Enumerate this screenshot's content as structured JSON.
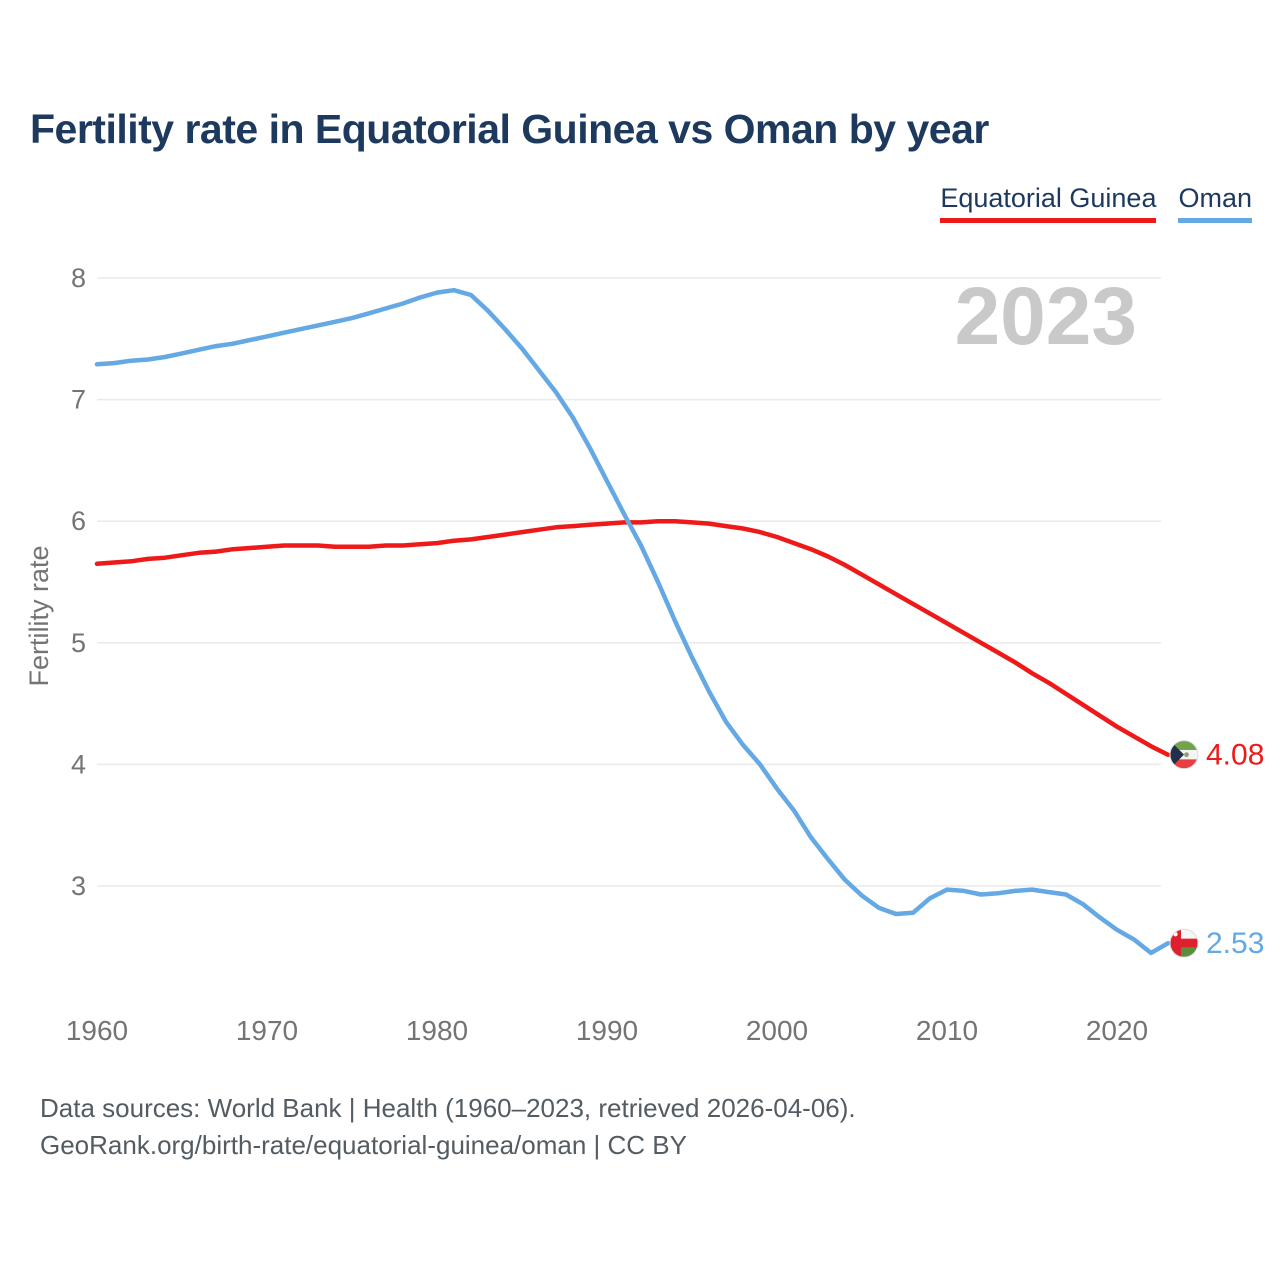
{
  "title": "Fertility rate in Equatorial Guinea vs Oman by year",
  "legend": {
    "items": [
      {
        "label": "Equatorial Guinea",
        "color": "#ee1a1a"
      },
      {
        "label": "Oman",
        "color": "#64a8e4"
      }
    ]
  },
  "footer": {
    "line1": "Data sources: World Bank | Health (1960–2023, retrieved 2026-04-06).",
    "line2": "GeoRank.org/birth-rate/equatorial-guinea/oman | CC BY"
  },
  "colors": {
    "title_text": "#1d3a5e",
    "axis_text": "#747474",
    "grid": "#eaeaea",
    "watermark": "#c9c9c9",
    "footer_text": "#545c63"
  },
  "flags": {
    "equatorial-guinea": {
      "green": "#73a24c",
      "white": "#f4f4f4",
      "red": "#e63e41",
      "blue": "#20304a",
      "emblem": "#94a06b"
    },
    "oman": {
      "white": "#f6f6f6",
      "red": "#df1f2d",
      "green": "#57903c"
    }
  },
  "chart_data": {
    "type": "line",
    "title": "Fertility rate in Equatorial Guinea vs Oman by year",
    "xlabel": "",
    "ylabel": "Fertility rate",
    "watermark": "2023",
    "grid": true,
    "legend_position": "top-right",
    "xlim": [
      1960,
      2023
    ],
    "ylim": [
      2.2,
      8.3
    ],
    "yticks": [
      3,
      4,
      5,
      6,
      7,
      8
    ],
    "xticks": [
      1960,
      1970,
      1980,
      1990,
      2000,
      2010,
      2020
    ],
    "x": [
      1960,
      1961,
      1962,
      1963,
      1964,
      1965,
      1966,
      1967,
      1968,
      1969,
      1970,
      1971,
      1972,
      1973,
      1974,
      1975,
      1976,
      1977,
      1978,
      1979,
      1980,
      1981,
      1982,
      1983,
      1984,
      1985,
      1986,
      1987,
      1988,
      1989,
      1990,
      1991,
      1992,
      1993,
      1994,
      1995,
      1996,
      1997,
      1998,
      1999,
      2000,
      2001,
      2002,
      2003,
      2004,
      2005,
      2006,
      2007,
      2008,
      2009,
      2010,
      2011,
      2012,
      2013,
      2014,
      2015,
      2016,
      2017,
      2018,
      2019,
      2020,
      2021,
      2022,
      2023
    ],
    "series": [
      {
        "id": "equatorial-guinea",
        "name": "Equatorial Guinea",
        "color": "#ee1a1a",
        "end_label": "4.08",
        "end_value": 4.08,
        "values": [
          5.65,
          5.66,
          5.67,
          5.69,
          5.7,
          5.72,
          5.74,
          5.75,
          5.77,
          5.78,
          5.79,
          5.8,
          5.8,
          5.8,
          5.79,
          5.79,
          5.79,
          5.8,
          5.8,
          5.81,
          5.82,
          5.84,
          5.85,
          5.87,
          5.89,
          5.91,
          5.93,
          5.95,
          5.96,
          5.97,
          5.98,
          5.99,
          5.99,
          6.0,
          6.0,
          5.99,
          5.98,
          5.96,
          5.94,
          5.91,
          5.87,
          5.82,
          5.77,
          5.71,
          5.64,
          5.56,
          5.48,
          5.4,
          5.32,
          5.24,
          5.16,
          5.08,
          5.0,
          4.92,
          4.84,
          4.75,
          4.67,
          4.58,
          4.49,
          4.4,
          4.31,
          4.23,
          4.15,
          4.08
        ]
      },
      {
        "id": "oman",
        "name": "Oman",
        "color": "#64a8e4",
        "end_label": "2.53",
        "end_value": 2.53,
        "values": [
          7.29,
          7.3,
          7.32,
          7.33,
          7.35,
          7.38,
          7.41,
          7.44,
          7.46,
          7.49,
          7.52,
          7.55,
          7.58,
          7.61,
          7.64,
          7.67,
          7.71,
          7.75,
          7.79,
          7.84,
          7.88,
          7.9,
          7.86,
          7.73,
          7.58,
          7.42,
          7.24,
          7.06,
          6.85,
          6.6,
          6.33,
          6.06,
          5.8,
          5.5,
          5.18,
          4.88,
          4.6,
          4.35,
          4.16,
          4.0,
          3.8,
          3.62,
          3.4,
          3.22,
          3.05,
          2.92,
          2.82,
          2.77,
          2.78,
          2.9,
          2.97,
          2.96,
          2.93,
          2.94,
          2.96,
          2.97,
          2.95,
          2.93,
          2.85,
          2.74,
          2.64,
          2.56,
          2.45,
          2.53
        ]
      }
    ]
  }
}
